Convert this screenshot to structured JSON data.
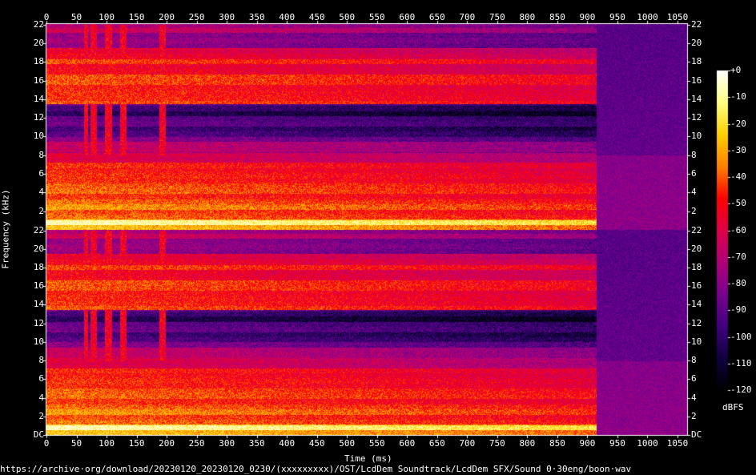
{
  "chart_data": {
    "type": "heatmap",
    "title": "",
    "xlabel": "Time (ms)",
    "ylabel": "Frequency (kHz)",
    "xlim": [
      0,
      1066
    ],
    "ylim_khz": [
      0,
      22.05
    ],
    "channels": 2,
    "x_ticks": [
      "0",
      "50",
      "100",
      "150",
      "200",
      "250",
      "300",
      "350",
      "400",
      "450",
      "500",
      "550",
      "600",
      "650",
      "700",
      "750",
      "800",
      "850",
      "900",
      "950",
      "1000",
      "1050"
    ],
    "y_ticks_top": [
      "2",
      "4",
      "6",
      "8",
      "10",
      "12",
      "14",
      "16",
      "18",
      "20",
      "22"
    ],
    "y_ticks_bottom": [
      "DC",
      "2",
      "4",
      "6",
      "8",
      "10",
      "12",
      "14",
      "16",
      "18",
      "20",
      "22"
    ],
    "colorbar": {
      "label": "dBFS",
      "range": [
        -120,
        0
      ],
      "ticks": [
        "+0",
        "-10",
        "-20",
        "-30",
        "-40",
        "-50",
        "-60",
        "-70",
        "-80",
        "-90",
        "-100",
        "-110",
        "-120"
      ],
      "colors": [
        "#ffffff",
        "#ffff80",
        "#ffd000",
        "#ff8000",
        "#ff0000",
        "#e0004a",
        "#b0007a",
        "#780090",
        "#400080",
        "#100040",
        "#000000"
      ]
    },
    "sound_end_ms": 915,
    "transient_lines_ms": [
      65,
      75,
      80,
      100,
      105,
      125,
      130,
      190,
      195
    ]
  },
  "footer": {
    "source": "https://archive·org/download/20230120_20230120_0230/(xxxxxxxxx)/OST/LcdDem Soundtrack/LcdDem SFX/Sound 0·30eng/boon·wav"
  }
}
